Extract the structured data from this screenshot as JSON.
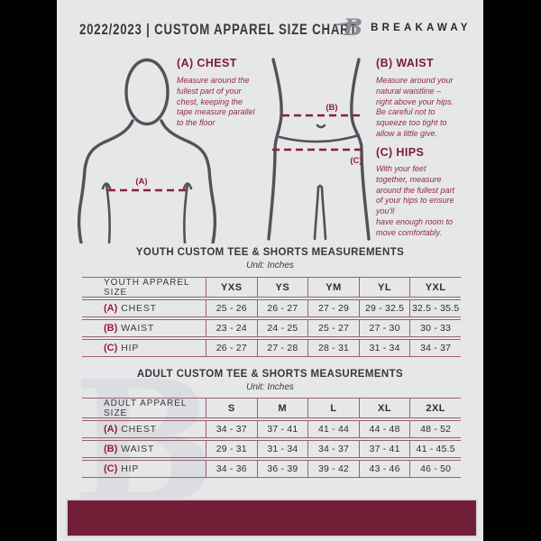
{
  "header": {
    "title": "2022/2023  |  CUSTOM APPAREL SIZE CHART",
    "brand": "BREAKAWAY",
    "logo_glyph": "B"
  },
  "guide": {
    "chest": {
      "heading": "(A) CHEST",
      "marker": "(A)",
      "text": "Measure around the\nfullest part of your\nchest, keeping the\ntape measure parallel\nto the floor"
    },
    "waist": {
      "heading": "(B) WAIST",
      "marker": "(B)",
      "text": "Measure around your\nnatural waistline –\nright above your hips.\nBe careful not to\nsqueeze too tight to\nallow a little give."
    },
    "hips": {
      "heading": "(C) HIPS",
      "marker": "(C)",
      "text": "With your feet\ntogether, measure\naround the fullest part\nof your hips to ensure\nyou'll\nhave enough room to\nmove comfortably."
    }
  },
  "youth": {
    "title": "YOUTH CUSTOM TEE & SHORTS MEASUREMENTS",
    "unit": "Unit: Inches",
    "table": {
      "size_label": "YOUTH APPAREL SIZE",
      "sizes": [
        "YXS",
        "YS",
        "YM",
        "YL",
        "YXL"
      ],
      "rows": [
        {
          "key": "(A)",
          "name": "CHEST",
          "values": [
            "25 - 26",
            "26 - 27",
            "27 - 29",
            "29 - 32.5",
            "32.5 - 35.5"
          ]
        },
        {
          "key": "(B)",
          "name": "WAIST",
          "values": [
            "23 - 24",
            "24 - 25",
            "25 - 27",
            "27 - 30",
            "30 - 33"
          ]
        },
        {
          "key": "(C)",
          "name": "HIP",
          "values": [
            "26 - 27",
            "27 - 28",
            "28 - 31",
            "31 - 34",
            "34 - 37"
          ]
        }
      ]
    }
  },
  "adult": {
    "title": "ADULT CUSTOM TEE & SHORTS MEASUREMENTS",
    "unit": "Unit: Inches",
    "table": {
      "size_label": "ADULT APPAREL SIZE",
      "sizes": [
        "S",
        "M",
        "L",
        "XL",
        "2XL"
      ],
      "rows": [
        {
          "key": "(A)",
          "name": "CHEST",
          "values": [
            "34 - 37",
            "37 - 41",
            "41 - 44",
            "44 - 48",
            "48 - 52"
          ]
        },
        {
          "key": "(B)",
          "name": "WAIST",
          "values": [
            "29 - 31",
            "31 - 34",
            "34 - 37",
            "37 - 41",
            "41 - 45.5"
          ]
        },
        {
          "key": "(C)",
          "name": "HIP",
          "values": [
            "34 - 36",
            "36 - 39",
            "39 - 42",
            "43 - 46",
            "46 - 50"
          ]
        }
      ]
    }
  },
  "watermark": "B",
  "colors": {
    "background": "#e6e7e9",
    "pillar_black": "#010101",
    "maroon_heading": "#7c1c36",
    "maroon_paragraph": "#8e2c46",
    "maroon_dash": "#8c1e38",
    "maroon_key": "#9b1b38",
    "table_line": "#9d5e71",
    "footer_bar": "#731e37",
    "text_dark": "#38383a",
    "body_outline": "#525257"
  }
}
